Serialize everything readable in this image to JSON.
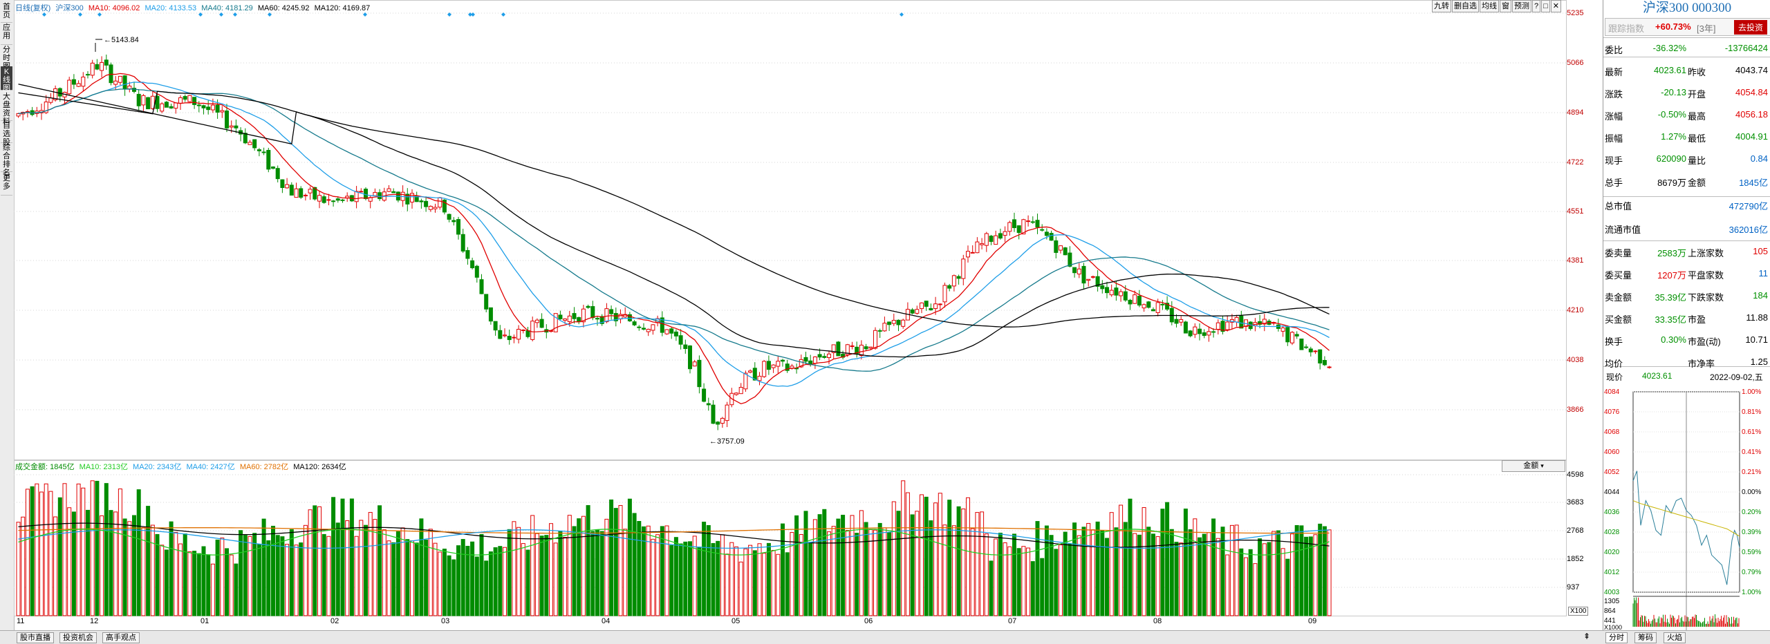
{
  "left_tabs": [
    "首页",
    "应用",
    "分时图",
    "K线图",
    "大盘资料",
    "自选股",
    "综合排名",
    "更多"
  ],
  "legend": {
    "name": "日线(复权)",
    "code": "沪深300",
    "ma10": "MA10: 4096.02",
    "ma20": "MA20: 4133.53",
    "ma40": "MA40: 4181.29",
    "ma60": "MA60: 4245.92",
    "ma120": "MA120: 4169.87"
  },
  "top_buttons": [
    "九转",
    "删自选",
    "均线",
    "窗",
    "预测",
    "?",
    "□",
    "✕"
  ],
  "price_axis": [
    "5235",
    "5066",
    "4894",
    "4722",
    "4551",
    "4381",
    "4210",
    "4038",
    "3866"
  ],
  "volume_axis": [
    "4598",
    "3683",
    "2768",
    "1852",
    "937"
  ],
  "x_axis": [
    "11",
    "12",
    "01",
    "02",
    "03",
    "04",
    "05",
    "06",
    "07",
    "08",
    "09"
  ],
  "annotations": {
    "high": "5143.84",
    "low": "3757.09"
  },
  "volume_legend": {
    "title": "成交金额: 1845亿",
    "ma10": "MA10: 2313亿",
    "ma20": "MA20: 2343亿",
    "ma40": "MA40: 2427亿",
    "ma60": "MA60: 2782亿",
    "ma120": "MA120: 2634亿"
  },
  "volume_selector": "金额",
  "x100": "X100",
  "bottom_tabs": [
    "股市直播",
    "投资机会",
    "高手观点"
  ],
  "right_panel": {
    "title": "沪深300 000300",
    "sub_label": "跟踪指数",
    "sub_pct": "+60.73%",
    "sub_period": "[3年]",
    "sub_button": "去投资",
    "rows": [
      {
        "l1": "委比",
        "v1": "-36.32%",
        "v1c": "green",
        "l2": "",
        "v2": "-13766424",
        "v2c": "green"
      },
      {
        "l1": "最新",
        "v1": "4023.61",
        "v1c": "green",
        "l2": "昨收",
        "v2": "4043.74",
        "v2c": "black"
      },
      {
        "l1": "涨跌",
        "v1": "-20.13",
        "v1c": "green",
        "l2": "开盘",
        "v2": "4054.84",
        "v2c": "red"
      },
      {
        "l1": "涨幅",
        "v1": "-0.50%",
        "v1c": "green",
        "l2": "最高",
        "v2": "4056.18",
        "v2c": "red"
      },
      {
        "l1": "振幅",
        "v1": "1.27%",
        "v1c": "green",
        "l2": "最低",
        "v2": "4004.91",
        "v2c": "green"
      },
      {
        "l1": "现手",
        "v1": "620090",
        "v1c": "green",
        "l2": "量比",
        "v2": "0.84",
        "v2c": "blue"
      },
      {
        "l1": "总手",
        "v1": "8679万",
        "v1c": "black",
        "l2": "金额",
        "v2": "1845亿",
        "v2c": "blue"
      },
      {
        "l1": "总市值",
        "v1": "",
        "v1c": "black",
        "l2": "",
        "v2": "472790亿",
        "v2c": "blue"
      },
      {
        "l1": "流通市值",
        "v1": "",
        "v1c": "black",
        "l2": "",
        "v2": "362016亿",
        "v2c": "blue"
      },
      {
        "l1": "委卖量",
        "v1": "2583万",
        "v1c": "green",
        "l2": "上涨家数",
        "v2": "105",
        "v2c": "red"
      },
      {
        "l1": "委买量",
        "v1": "1207万",
        "v1c": "red",
        "l2": "平盘家数",
        "v2": "11",
        "v2c": "blue"
      },
      {
        "l1": "卖金额",
        "v1": "35.39亿",
        "v1c": "green",
        "l2": "下跌家数",
        "v2": "184",
        "v2c": "green"
      },
      {
        "l1": "买金额",
        "v1": "33.35亿",
        "v1c": "green",
        "l2": "市盈",
        "v2": "11.88",
        "v2c": "black"
      },
      {
        "l1": "换手",
        "v1": "0.30%",
        "v1c": "green",
        "l2": "市盈(动)",
        "v2": "10.71",
        "v2c": "black"
      },
      {
        "l1": "均价",
        "v1": "",
        "v1c": "black",
        "l2": "市净率",
        "v2": "1.25",
        "v2c": "black"
      }
    ],
    "mini": {
      "label": "现价",
      "price": "4023.61",
      "date": "2022-09-02,五",
      "left_axis": [
        "4084",
        "4076",
        "4068",
        "4060",
        "4052",
        "4044",
        "4036",
        "4028",
        "4020",
        "4012",
        "4003"
      ],
      "right_axis": [
        "1.00%",
        "0.81%",
        "0.61%",
        "0.41%",
        "0.21%",
        "0.00%",
        "0.20%",
        "0.39%",
        "0.59%",
        "0.79%",
        "1.00%"
      ],
      "vol_axis": [
        "1305",
        "864",
        "441"
      ],
      "x1000": "X1000"
    },
    "bottom_tabs": [
      "分时",
      "筹码",
      "火焰"
    ]
  },
  "colors": {
    "up": "#e00000",
    "down": "#008c00",
    "ma10": "#e00000",
    "ma20": "#1e9ee8",
    "ma40": "#167a8c",
    "ma60": "#000000",
    "ma120": "#000000"
  }
}
